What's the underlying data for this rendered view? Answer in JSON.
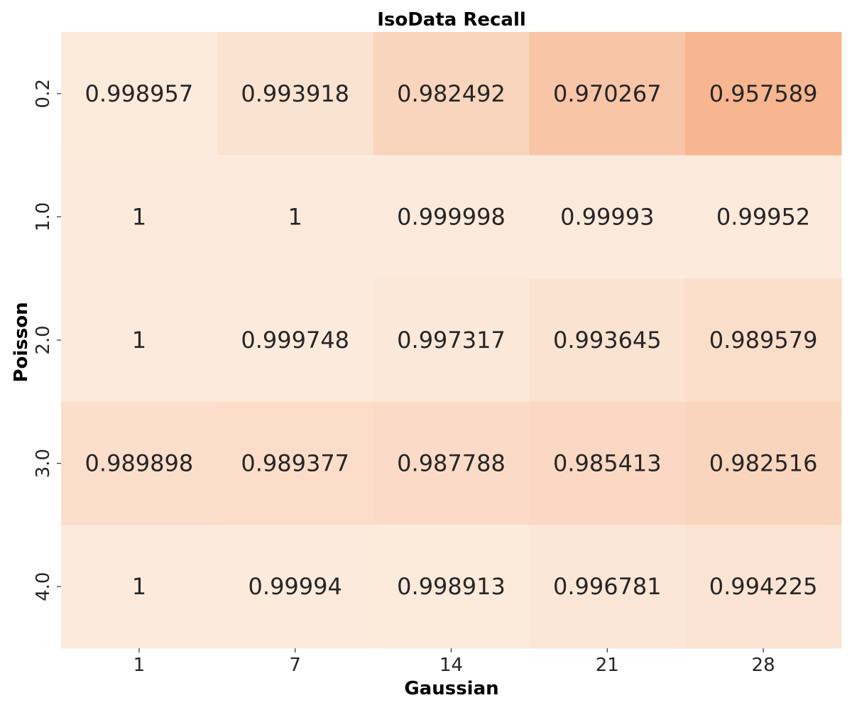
{
  "chart_data": {
    "type": "heatmap",
    "title": "IsoData Recall",
    "xlabel": "Gaussian",
    "ylabel": "Poisson",
    "x_categories": [
      "1",
      "7",
      "14",
      "21",
      "28"
    ],
    "y_categories": [
      "0.2",
      "1.0",
      "2.0",
      "3.0",
      "4.0"
    ],
    "values": [
      [
        0.998957,
        0.993918,
        0.982492,
        0.970267,
        0.957589
      ],
      [
        1,
        1,
        0.999998,
        0.99993,
        0.99952
      ],
      [
        1,
        0.999748,
        0.997317,
        0.993645,
        0.989579
      ],
      [
        0.989898,
        0.989377,
        0.987788,
        0.985413,
        0.982516
      ],
      [
        1,
        0.99994,
        0.998913,
        0.996781,
        0.994225
      ]
    ],
    "labels": [
      [
        "0.998957",
        "0.993918",
        "0.982492",
        "0.970267",
        "0.957589"
      ],
      [
        "1",
        "1",
        "0.999998",
        "0.99993",
        "0.99952"
      ],
      [
        "1",
        "0.999748",
        "0.997317",
        "0.993645",
        "0.989579"
      ],
      [
        "0.989898",
        "0.989377",
        "0.987788",
        "0.985413",
        "0.982516"
      ],
      [
        "1",
        "0.99994",
        "0.998913",
        "0.996781",
        "0.994225"
      ]
    ],
    "colormap": {
      "low_color": "#f7b590",
      "high_color": "#fcebdd",
      "vmin": 0.957589,
      "vmax": 1
    },
    "colorbar": false
  }
}
